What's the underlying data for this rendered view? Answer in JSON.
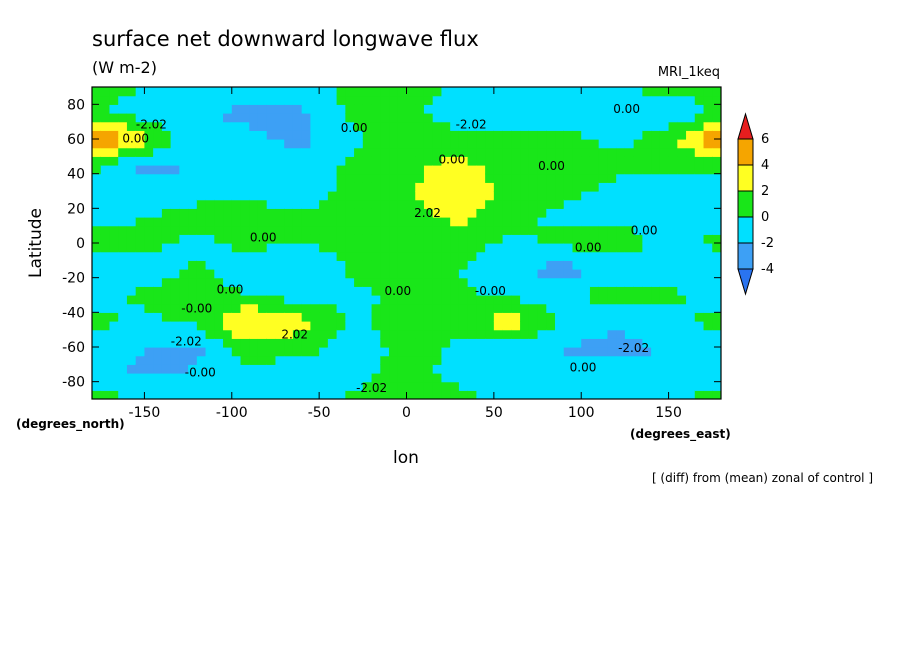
{
  "header": {
    "title": "surface net downward longwave flux",
    "units": "(W m-2)",
    "model": "MRI_1keq"
  },
  "axes": {
    "ylabel": "Latitude",
    "xlabel": "lon",
    "y_unit_note": "(degrees_north)",
    "x_unit_note": "(degrees_east)"
  },
  "footer": {
    "note": "[ (diff) from (mean) zonal of control ]"
  },
  "colors": {
    "below_minus4": "#2a74f0",
    "minus4_to_minus2": "#3da0f5",
    "minus2_to_0": "#00e0ff",
    "0_to_2": "#19e619",
    "2_to_4": "#ffff22",
    "4_to_6": "#f5a500",
    "above_6": "#e61e1e"
  },
  "chart_data": {
    "type": "heatmap",
    "title": "surface net downward longwave flux",
    "subtitle": "(W m-2)",
    "xlabel": "lon",
    "ylabel": "Latitude",
    "xlim": [
      -180,
      180
    ],
    "ylim": [
      -90,
      90
    ],
    "xticks": [
      -150,
      -100,
      -50,
      0,
      50,
      100,
      150
    ],
    "xtick_labels": [
      "-150",
      "-100",
      "-50",
      "0",
      "50",
      "100",
      "150"
    ],
    "yticks": [
      -80,
      -60,
      -40,
      -20,
      0,
      20,
      40,
      60,
      80
    ],
    "ytick_labels": [
      "-80",
      "-60",
      "-40",
      "-20",
      "0",
      "20",
      "40",
      "60",
      "80"
    ],
    "colorbar": {
      "levels": [
        -4,
        -2,
        0,
        2,
        4,
        6
      ],
      "labels": [
        "-4",
        "-2",
        "0",
        "2",
        "4",
        "6"
      ],
      "extend": "both"
    },
    "lons": [
      -180,
      -150,
      -120,
      -90,
      -60,
      -30,
      0,
      30,
      60,
      90,
      120,
      150,
      180
    ],
    "lats": [
      -90,
      -75,
      -60,
      -45,
      -30,
      -15,
      0,
      15,
      30,
      45,
      60,
      75,
      90
    ],
    "values": [
      [
        0.5,
        0.3,
        0.2,
        0.0,
        -0.5,
        0.2,
        1.0,
        0.5,
        -0.5,
        -1.0,
        -0.5,
        0.2,
        0.5
      ],
      [
        -1.5,
        -2.5,
        -1.8,
        -1.0,
        -1.5,
        -0.5,
        0.5,
        -0.5,
        -1.5,
        -2.0,
        -1.0,
        -2.0,
        -1.5
      ],
      [
        -1.0,
        -2.0,
        -2.5,
        1.5,
        1.0,
        -1.5,
        1.0,
        -0.5,
        -1.0,
        -2.0,
        -3.0,
        -1.5,
        -1.0
      ],
      [
        0.5,
        -0.5,
        0.5,
        4.5,
        2.5,
        -0.5,
        1.0,
        1.5,
        3.0,
        -0.5,
        -1.5,
        -0.5,
        0.5
      ],
      [
        -1.0,
        0.5,
        1.5,
        0.0,
        -1.0,
        -0.5,
        0.5,
        0.5,
        -0.5,
        -0.5,
        1.0,
        0.5,
        -1.0
      ],
      [
        -1.5,
        -1.5,
        0.5,
        -1.5,
        -2.0,
        0.5,
        1.5,
        0.0,
        -1.5,
        -3.0,
        -1.0,
        -1.5,
        -1.5
      ],
      [
        0.5,
        0.5,
        -0.5,
        0.5,
        0.0,
        0.5,
        1.5,
        1.0,
        -0.5,
        0.5,
        1.0,
        -0.5,
        0.5
      ],
      [
        -0.5,
        0.0,
        1.0,
        1.0,
        0.5,
        1.5,
        1.0,
        2.5,
        0.5,
        -0.5,
        -0.5,
        -1.0,
        -0.5
      ],
      [
        -1.0,
        -1.5,
        -1.0,
        -0.5,
        -1.5,
        1.0,
        1.5,
        4.0,
        1.0,
        0.5,
        -0.5,
        -1.0,
        -1.0
      ],
      [
        0.5,
        -2.5,
        -2.0,
        -0.5,
        -1.0,
        0.5,
        1.5,
        2.5,
        1.0,
        2.0,
        0.5,
        0.5,
        0.5
      ],
      [
        6.5,
        3.0,
        -2.0,
        -1.5,
        -2.5,
        -0.5,
        2.0,
        1.0,
        0.5,
        0.5,
        -0.5,
        1.0,
        6.5
      ],
      [
        0.5,
        -1.0,
        -1.5,
        -2.5,
        -2.5,
        0.5,
        1.0,
        -2.0,
        -2.0,
        -0.5,
        -1.0,
        -1.5,
        0.5
      ],
      [
        0.5,
        0.0,
        -0.5,
        -1.0,
        -0.5,
        0.5,
        0.5,
        0.0,
        -0.5,
        0.0,
        0.0,
        0.5,
        0.5
      ]
    ],
    "contour_labels": [
      {
        "text": "-2.02",
        "lon": -146,
        "lat": 66
      },
      {
        "text": "0.00",
        "lon": -155,
        "lat": 58
      },
      {
        "text": "0.00",
        "lon": -30,
        "lat": 64
      },
      {
        "text": "-2.02",
        "lon": 37,
        "lat": 66
      },
      {
        "text": "0.00",
        "lon": 126,
        "lat": 75
      },
      {
        "text": "0.00",
        "lon": 26,
        "lat": 46
      },
      {
        "text": "0.00",
        "lon": 83,
        "lat": 42
      },
      {
        "text": "2.02",
        "lon": 12,
        "lat": 15
      },
      {
        "text": "0.00",
        "lon": -82,
        "lat": 1
      },
      {
        "text": "0.00",
        "lon": 104,
        "lat": -5
      },
      {
        "text": "0.00",
        "lon": 136,
        "lat": 5
      },
      {
        "text": "0.00",
        "lon": -101,
        "lat": -29
      },
      {
        "text": "-0.00",
        "lon": -120,
        "lat": -40
      },
      {
        "text": "0.00",
        "lon": -5,
        "lat": -30
      },
      {
        "text": "-0.00",
        "lon": 48,
        "lat": -30
      },
      {
        "text": "-2.02",
        "lon": -126,
        "lat": -59
      },
      {
        "text": "2.02",
        "lon": -64,
        "lat": -55
      },
      {
        "text": "-2.02",
        "lon": 130,
        "lat": -63
      },
      {
        "text": "0.00",
        "lon": 101,
        "lat": -74
      },
      {
        "text": "-0.00",
        "lon": -118,
        "lat": -77
      },
      {
        "text": "-2.02",
        "lon": -20,
        "lat": -86
      }
    ]
  }
}
